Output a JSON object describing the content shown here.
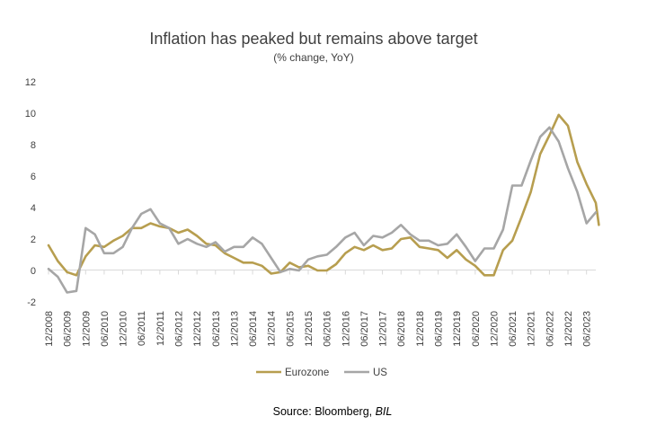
{
  "chart_data": {
    "type": "line",
    "title": "Inflation has peaked but remains above target",
    "subtitle": "(% change, YoY)",
    "ylim": [
      -2,
      12
    ],
    "yticks": [
      "-2",
      "0",
      "2",
      "4",
      "6",
      "8",
      "10",
      "12"
    ],
    "grid": false,
    "legend": "bottom",
    "x_ticks": [
      "12/2008",
      "06/2009",
      "12/2009",
      "06/2010",
      "12/2010",
      "06/2011",
      "12/2011",
      "06/2012",
      "12/2012",
      "06/2013",
      "12/2013",
      "06/2014",
      "12/2014",
      "06/2015",
      "12/2015",
      "06/2016",
      "12/2016",
      "06/2017",
      "12/2017",
      "06/2018",
      "12/2018",
      "06/2019",
      "12/2019",
      "06/2020",
      "12/2020",
      "06/2021",
      "12/2021",
      "06/2022",
      "12/2022",
      "06/2023"
    ],
    "x_start": "12/2008",
    "x_end": "09/2023",
    "series": [
      {
        "name": "Eurozone",
        "color": "#B79E4F",
        "points": [
          [
            "12/2008",
            1.6
          ],
          [
            "03/2009",
            0.6
          ],
          [
            "06/2009",
            -0.1
          ],
          [
            "09/2009",
            -0.3
          ],
          [
            "12/2009",
            0.9
          ],
          [
            "03/2010",
            1.6
          ],
          [
            "06/2010",
            1.5
          ],
          [
            "09/2010",
            1.9
          ],
          [
            "12/2010",
            2.2
          ],
          [
            "03/2011",
            2.7
          ],
          [
            "06/2011",
            2.7
          ],
          [
            "09/2011",
            3.0
          ],
          [
            "12/2011",
            2.8
          ],
          [
            "03/2012",
            2.7
          ],
          [
            "06/2012",
            2.4
          ],
          [
            "09/2012",
            2.6
          ],
          [
            "12/2012",
            2.2
          ],
          [
            "03/2013",
            1.7
          ],
          [
            "06/2013",
            1.6
          ],
          [
            "09/2013",
            1.1
          ],
          [
            "12/2013",
            0.8
          ],
          [
            "03/2014",
            0.5
          ],
          [
            "06/2014",
            0.5
          ],
          [
            "09/2014",
            0.3
          ],
          [
            "12/2014",
            -0.2
          ],
          [
            "03/2015",
            -0.1
          ],
          [
            "06/2015",
            0.5
          ],
          [
            "09/2015",
            0.2
          ],
          [
            "12/2015",
            0.3
          ],
          [
            "03/2016",
            0.0
          ],
          [
            "06/2016",
            0.0
          ],
          [
            "09/2016",
            0.4
          ],
          [
            "12/2016",
            1.1
          ],
          [
            "03/2017",
            1.5
          ],
          [
            "06/2017",
            1.3
          ],
          [
            "09/2017",
            1.6
          ],
          [
            "12/2017",
            1.3
          ],
          [
            "03/2018",
            1.4
          ],
          [
            "06/2018",
            2.0
          ],
          [
            "09/2018",
            2.1
          ],
          [
            "12/2018",
            1.5
          ],
          [
            "03/2019",
            1.4
          ],
          [
            "06/2019",
            1.3
          ],
          [
            "09/2019",
            0.8
          ],
          [
            "12/2019",
            1.3
          ],
          [
            "03/2020",
            0.7
          ],
          [
            "06/2020",
            0.3
          ],
          [
            "09/2020",
            -0.3
          ],
          [
            "12/2020",
            -0.3
          ],
          [
            "03/2021",
            1.3
          ],
          [
            "06/2021",
            1.9
          ],
          [
            "09/2021",
            3.4
          ],
          [
            "12/2021",
            5.0
          ],
          [
            "03/2022",
            7.4
          ],
          [
            "06/2022",
            8.6
          ],
          [
            "09/2022",
            9.9
          ],
          [
            "12/2022",
            9.2
          ],
          [
            "03/2023",
            6.9
          ],
          [
            "06/2023",
            5.5
          ],
          [
            "09/2023",
            4.3
          ],
          [
            "10/2023",
            2.9
          ]
        ]
      },
      {
        "name": "US",
        "color": "#A6A6A6",
        "points": [
          [
            "12/2008",
            0.1
          ],
          [
            "03/2009",
            -0.4
          ],
          [
            "06/2009",
            -1.4
          ],
          [
            "09/2009",
            -1.3
          ],
          [
            "12/2009",
            2.7
          ],
          [
            "03/2010",
            2.3
          ],
          [
            "06/2010",
            1.1
          ],
          [
            "09/2010",
            1.1
          ],
          [
            "12/2010",
            1.5
          ],
          [
            "03/2011",
            2.7
          ],
          [
            "06/2011",
            3.6
          ],
          [
            "09/2011",
            3.9
          ],
          [
            "12/2011",
            3.0
          ],
          [
            "03/2012",
            2.7
          ],
          [
            "06/2012",
            1.7
          ],
          [
            "09/2012",
            2.0
          ],
          [
            "12/2012",
            1.7
          ],
          [
            "03/2013",
            1.5
          ],
          [
            "06/2013",
            1.8
          ],
          [
            "09/2013",
            1.2
          ],
          [
            "12/2013",
            1.5
          ],
          [
            "03/2014",
            1.5
          ],
          [
            "06/2014",
            2.1
          ],
          [
            "09/2014",
            1.7
          ],
          [
            "12/2014",
            0.8
          ],
          [
            "03/2015",
            -0.1
          ],
          [
            "06/2015",
            0.1
          ],
          [
            "09/2015",
            0.0
          ],
          [
            "12/2015",
            0.7
          ],
          [
            "03/2016",
            0.9
          ],
          [
            "06/2016",
            1.0
          ],
          [
            "09/2016",
            1.5
          ],
          [
            "12/2016",
            2.1
          ],
          [
            "03/2017",
            2.4
          ],
          [
            "06/2017",
            1.6
          ],
          [
            "09/2017",
            2.2
          ],
          [
            "12/2017",
            2.1
          ],
          [
            "03/2018",
            2.4
          ],
          [
            "06/2018",
            2.9
          ],
          [
            "09/2018",
            2.3
          ],
          [
            "12/2018",
            1.9
          ],
          [
            "03/2019",
            1.9
          ],
          [
            "06/2019",
            1.6
          ],
          [
            "09/2019",
            1.7
          ],
          [
            "12/2019",
            2.3
          ],
          [
            "03/2020",
            1.5
          ],
          [
            "06/2020",
            0.6
          ],
          [
            "09/2020",
            1.4
          ],
          [
            "12/2020",
            1.4
          ],
          [
            "03/2021",
            2.6
          ],
          [
            "06/2021",
            5.4
          ],
          [
            "09/2021",
            5.4
          ],
          [
            "12/2021",
            7.0
          ],
          [
            "03/2022",
            8.5
          ],
          [
            "06/2022",
            9.1
          ],
          [
            "09/2022",
            8.2
          ],
          [
            "12/2022",
            6.5
          ],
          [
            "03/2023",
            5.0
          ],
          [
            "06/2023",
            3.0
          ],
          [
            "09/2023",
            3.7
          ]
        ]
      }
    ]
  },
  "source": {
    "label": "Source: Bloomberg, ",
    "emphasis": "BIL"
  }
}
